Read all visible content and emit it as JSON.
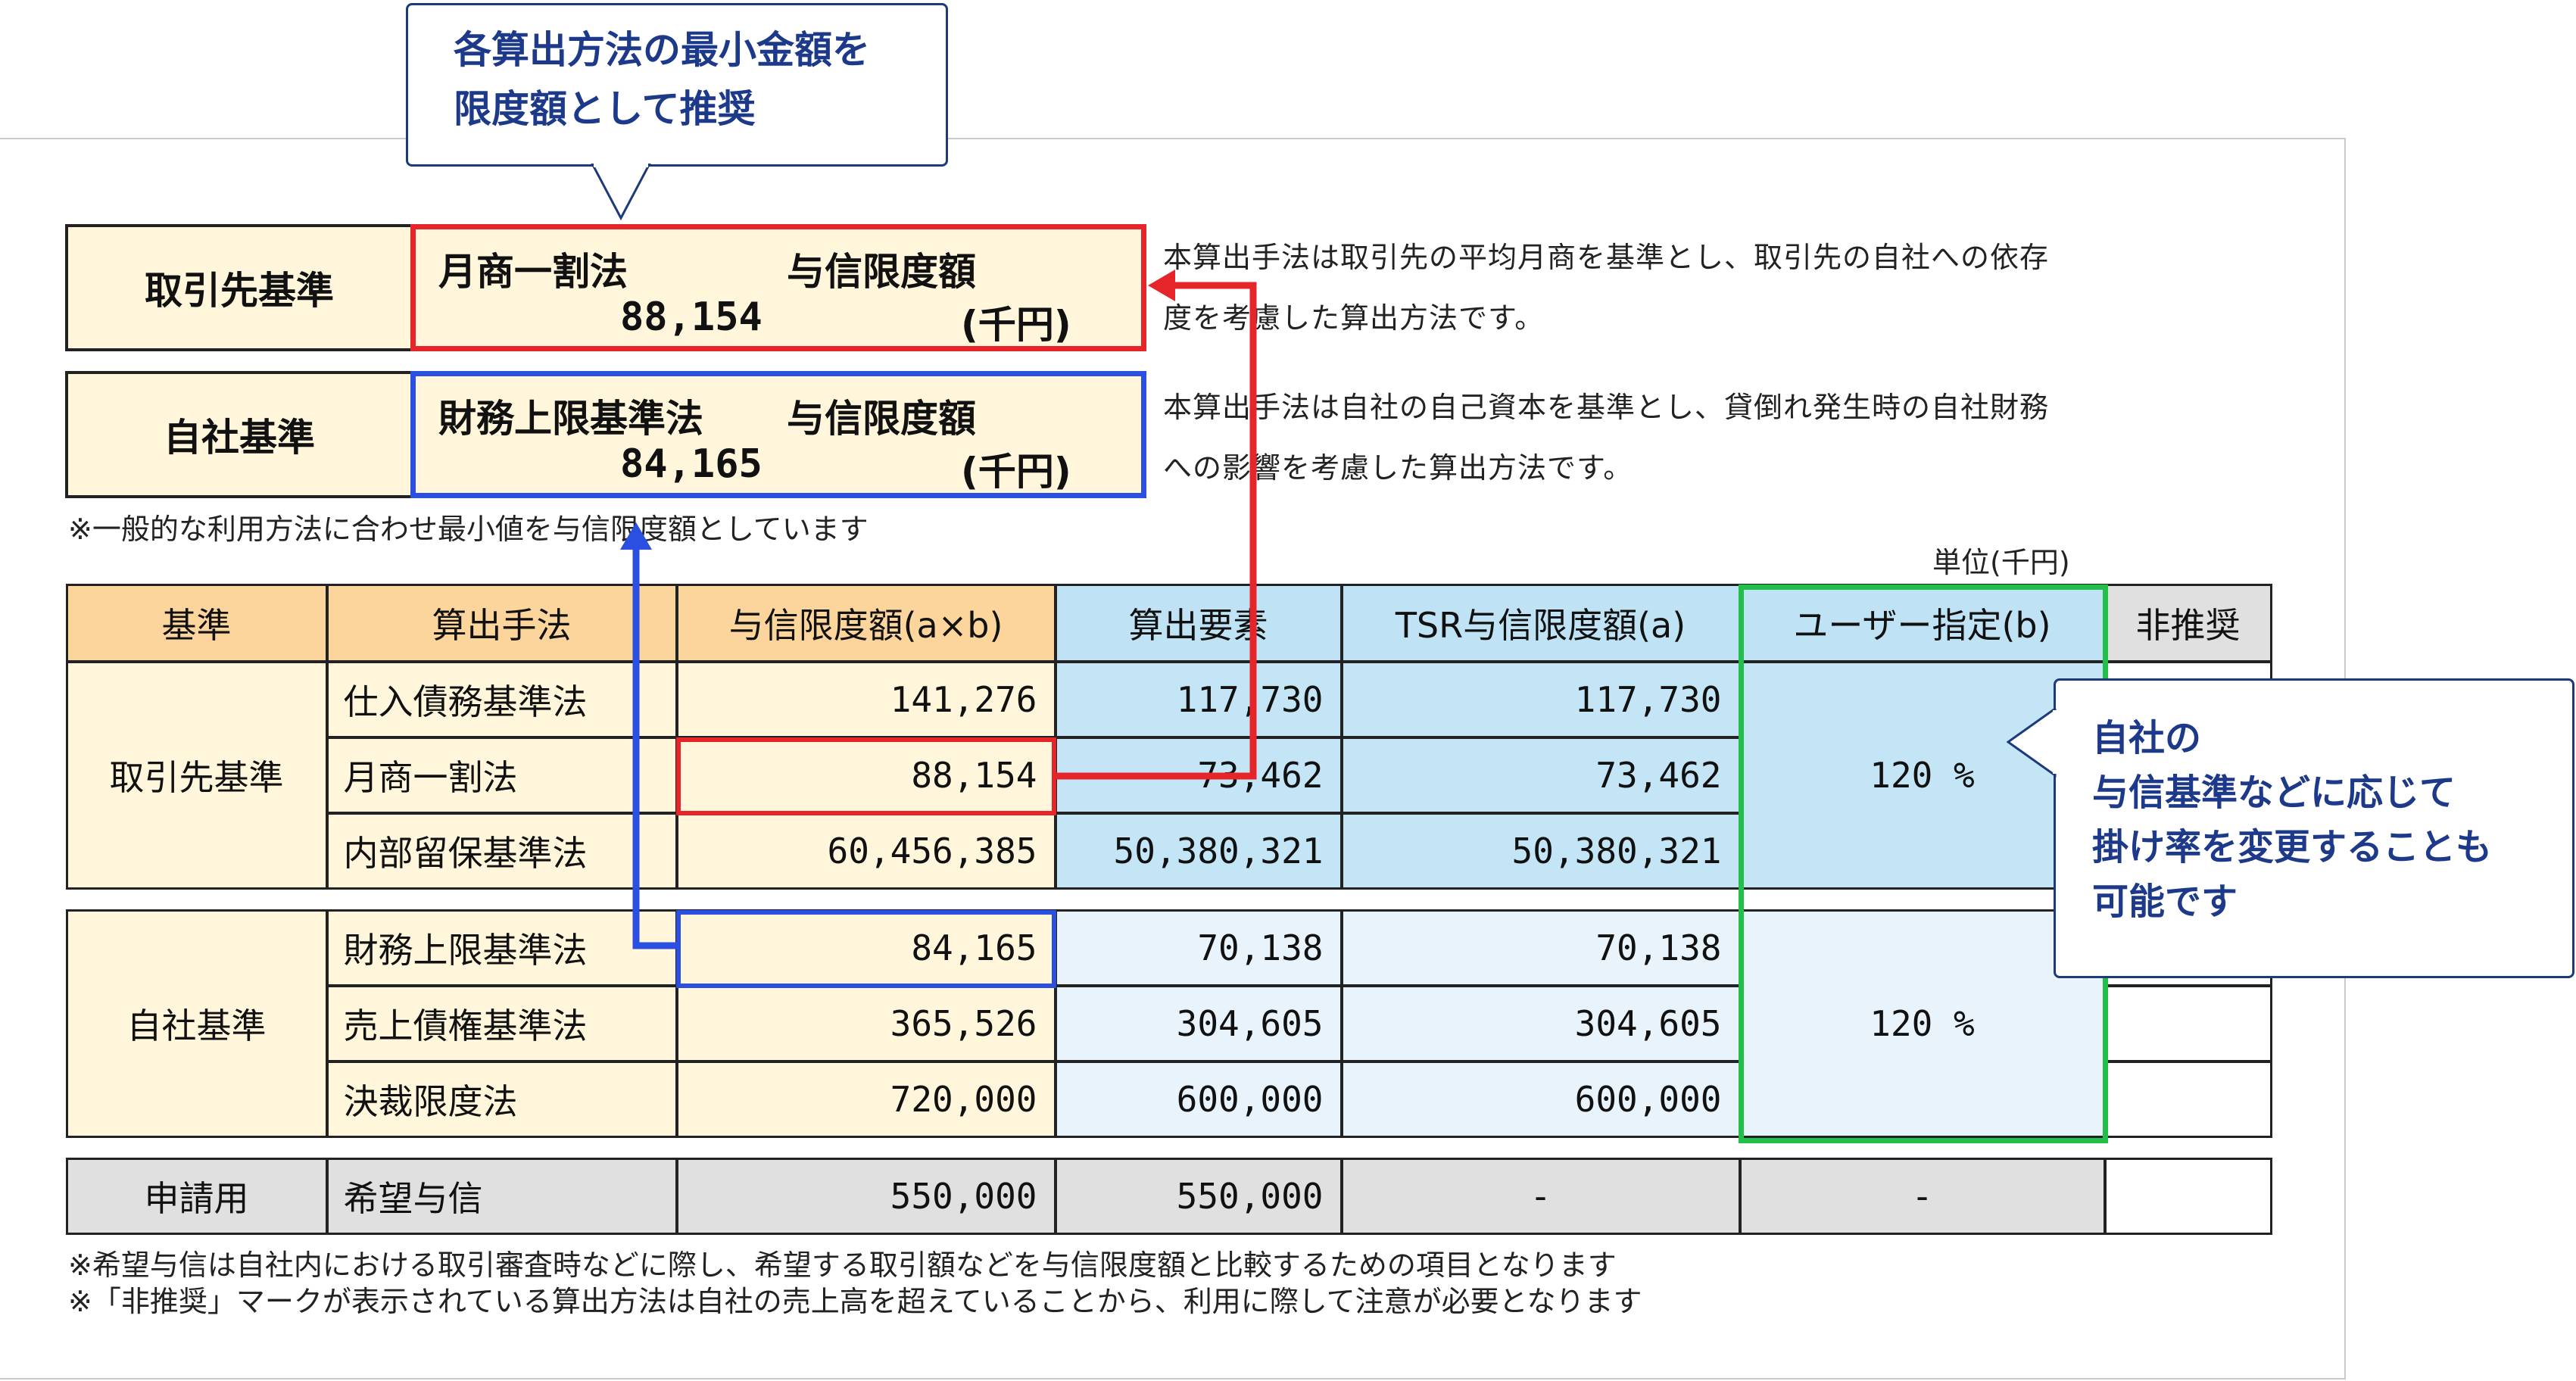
{
  "callout_top": {
    "line1": "各算出方法の最小金額を",
    "line2": "限度額として推奨"
  },
  "callout_right": {
    "line1": "自社の",
    "line2": "与信基準などに応じて",
    "line3": "掛け率を変更することも",
    "line4": "可能です"
  },
  "summary": [
    {
      "label": "取引先基準",
      "method": "月商一割法",
      "limit_label": "与信限度額",
      "amount": "88,154",
      "unit": "(千円)"
    },
    {
      "label": "自社基準",
      "method": "財務上限基準法",
      "limit_label": "与信限度額",
      "amount": "84,165",
      "unit": "(千円)"
    }
  ],
  "desc1": {
    "line1": "本算出手法は取引先の平均月商を基準とし、取引先の自社への依存",
    "line2": "度を考慮した算出方法です。"
  },
  "desc2": {
    "line1": "本算出手法は自社の自己資本を基準とし、貸倒れ発生時の自社財務",
    "line2": "への影響を考慮した算出方法です。"
  },
  "note_min": "※一般的な利用方法に合わせ最小値を与信限度額としています",
  "unit_label": "単位(千円)",
  "table": {
    "headers": [
      "基準",
      "算出手法",
      "与信限度額(a×b)",
      "算出要素",
      "TSR与信限度額(a)",
      "ユーザー指定(b)",
      "非推奨"
    ],
    "groups": [
      {
        "name": "取引先基準",
        "ratio": "120 %",
        "rows": [
          {
            "method": "仕入債務基準法",
            "limit": "141,276",
            "factor": "117,730",
            "tsr": "117,730"
          },
          {
            "method": "月商一割法",
            "limit": "88,154",
            "factor": "73,462",
            "tsr": "73,462"
          },
          {
            "method": "内部留保基準法",
            "limit": "60,456,385",
            "factor": "50,380,321",
            "tsr": "50,380,321"
          }
        ]
      },
      {
        "name": "自社基準",
        "ratio": "120 %",
        "rows": [
          {
            "method": "財務上限基準法",
            "limit": "84,165",
            "factor": "70,138",
            "tsr": "70,138"
          },
          {
            "method": "売上債権基準法",
            "limit": "365,526",
            "factor": "304,605",
            "tsr": "304,605"
          },
          {
            "method": "決裁限度法",
            "limit": "720,000",
            "factor": "600,000",
            "tsr": "600,000"
          }
        ]
      }
    ],
    "application": {
      "name": "申請用",
      "method": "希望与信",
      "limit": "550,000",
      "factor": "550,000",
      "tsr": "-",
      "user": "-"
    }
  },
  "footnote1": "※希望与信は自社内における取引審査時などに際し、希望する取引額などを与信限度額と比較するための項目となります",
  "footnote2": "※「非推奨」マークが表示されている算出方法は自社の売上高を超えていることから、利用に際して注意が必要となります",
  "colors": {
    "red": "#e5252a",
    "blue": "#2b4fe0",
    "green": "#22c04a",
    "header_orange": "#fbd59b",
    "header_blue": "#bfe3f5",
    "cream": "#fff6dc"
  }
}
